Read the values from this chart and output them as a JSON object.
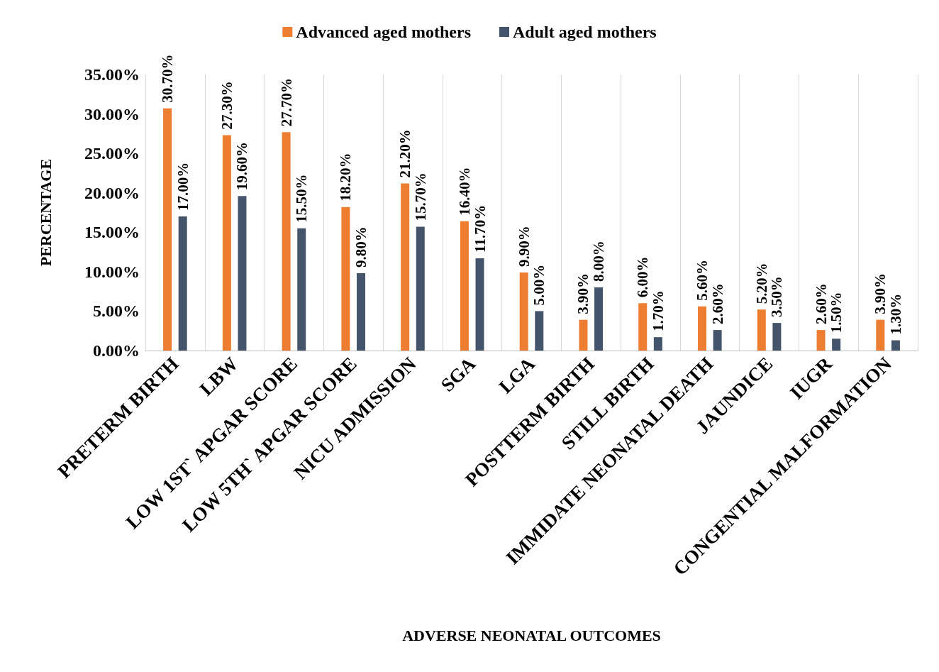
{
  "chart_data": {
    "type": "bar",
    "xlabel": "ADVERSE NEONATAL OUTCOMES",
    "ylabel": "PERCENTAGE",
    "categories": [
      "PRETERM BIRTH",
      "LBW",
      "LOW 1ST` APGAR SCORE",
      "LOW 5TH` APGAR SCORE",
      "NICU ADMISSION",
      "SGA",
      "LGA",
      "POSTTERM BIRTH",
      "STILL BIRTH",
      "IMMIDATE NEONATAL DEATH",
      "JAUNDICE",
      "IUGR",
      "CONGENTIAL MALFORMATION"
    ],
    "series": [
      {
        "name": "Advanced aged mothers",
        "color": "#ed7d31",
        "values": [
          30.7,
          27.3,
          27.7,
          18.2,
          21.2,
          16.4,
          9.9,
          3.9,
          6.0,
          5.6,
          5.2,
          2.6,
          3.9
        ],
        "value_labels": [
          "30.70%",
          "27.30%",
          "27.70%",
          "18.20%",
          "21.20%",
          "16.40%",
          "9.90%",
          "3.90%",
          "6.00%",
          "5.60%",
          "5.20%",
          "2.60%",
          "3.90%"
        ]
      },
      {
        "name": "Adult aged mothers",
        "color": "#44546a",
        "values": [
          17.0,
          19.6,
          15.5,
          9.8,
          15.7,
          11.7,
          5.0,
          8.0,
          1.7,
          2.6,
          3.5,
          1.5,
          1.3
        ],
        "value_labels": [
          "17.00%",
          "19.60%",
          "15.50%",
          "9.80%",
          "15.70%",
          "11.70%",
          "5.00%",
          "8.00%",
          "1.70%",
          "2.60%",
          "3.50%",
          "1.50%",
          "1.30%"
        ]
      }
    ],
    "ylim": [
      0,
      35
    ],
    "yticks": [
      {
        "value": 0,
        "label": "0.00%"
      },
      {
        "value": 5,
        "label": "5.00%"
      },
      {
        "value": 10,
        "label": "10.00%"
      },
      {
        "value": 15,
        "label": "15.00%"
      },
      {
        "value": 20,
        "label": "20.00%"
      },
      {
        "value": 25,
        "label": "25.00%"
      },
      {
        "value": 30,
        "label": "30.00%"
      },
      {
        "value": 35,
        "label": "35.00%"
      }
    ],
    "grid": "x",
    "legend": "top"
  }
}
